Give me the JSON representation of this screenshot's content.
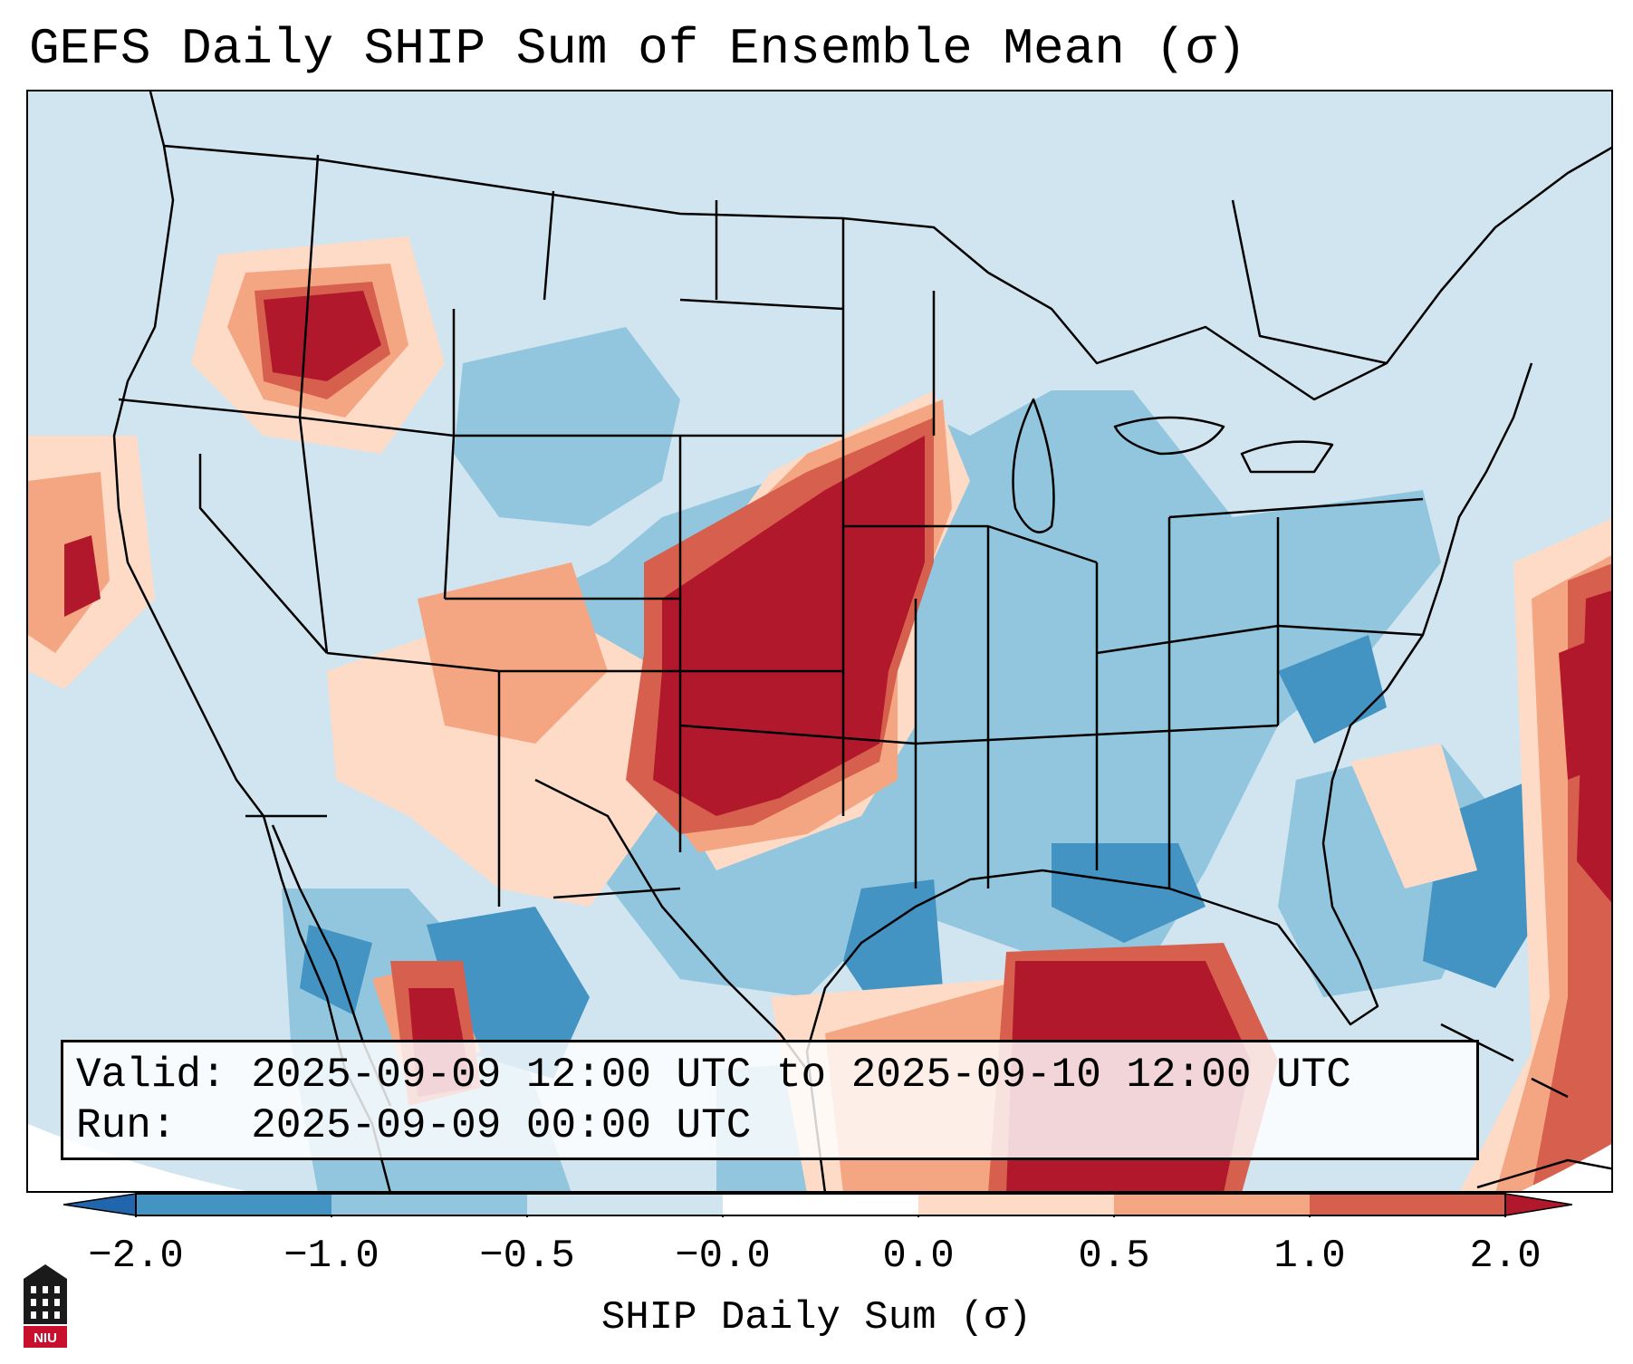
{
  "title": "GEFS Daily SHIP Sum of Ensemble Mean (σ)",
  "info": {
    "valid_label": "Valid:",
    "valid_value": "2025-09-09 12:00 UTC to 2025-09-10 12:00 UTC",
    "run_label": "Run:",
    "run_value": "2025-09-09 00:00 UTC"
  },
  "colorbar": {
    "label": "SHIP Daily Sum (σ)",
    "ticks": [
      "−2.0",
      "−1.0",
      "−0.5",
      "−0.0",
      "0.0",
      "0.5",
      "1.0",
      "2.0"
    ],
    "colors": {
      "extend_low": "#2166ac",
      "bin_neg2_neg1": "#4393c3",
      "bin_neg1_neg05": "#92c5de",
      "bin_neg05_0": "#d1e5f0",
      "bin_0_05": "#fddbc7",
      "bin_05_1": "#f4a582",
      "bin_1_2": "#d6604d",
      "extend_high": "#b2182b"
    }
  },
  "logo": {
    "text": "NIU",
    "name": "niu-logo-icon"
  }
}
